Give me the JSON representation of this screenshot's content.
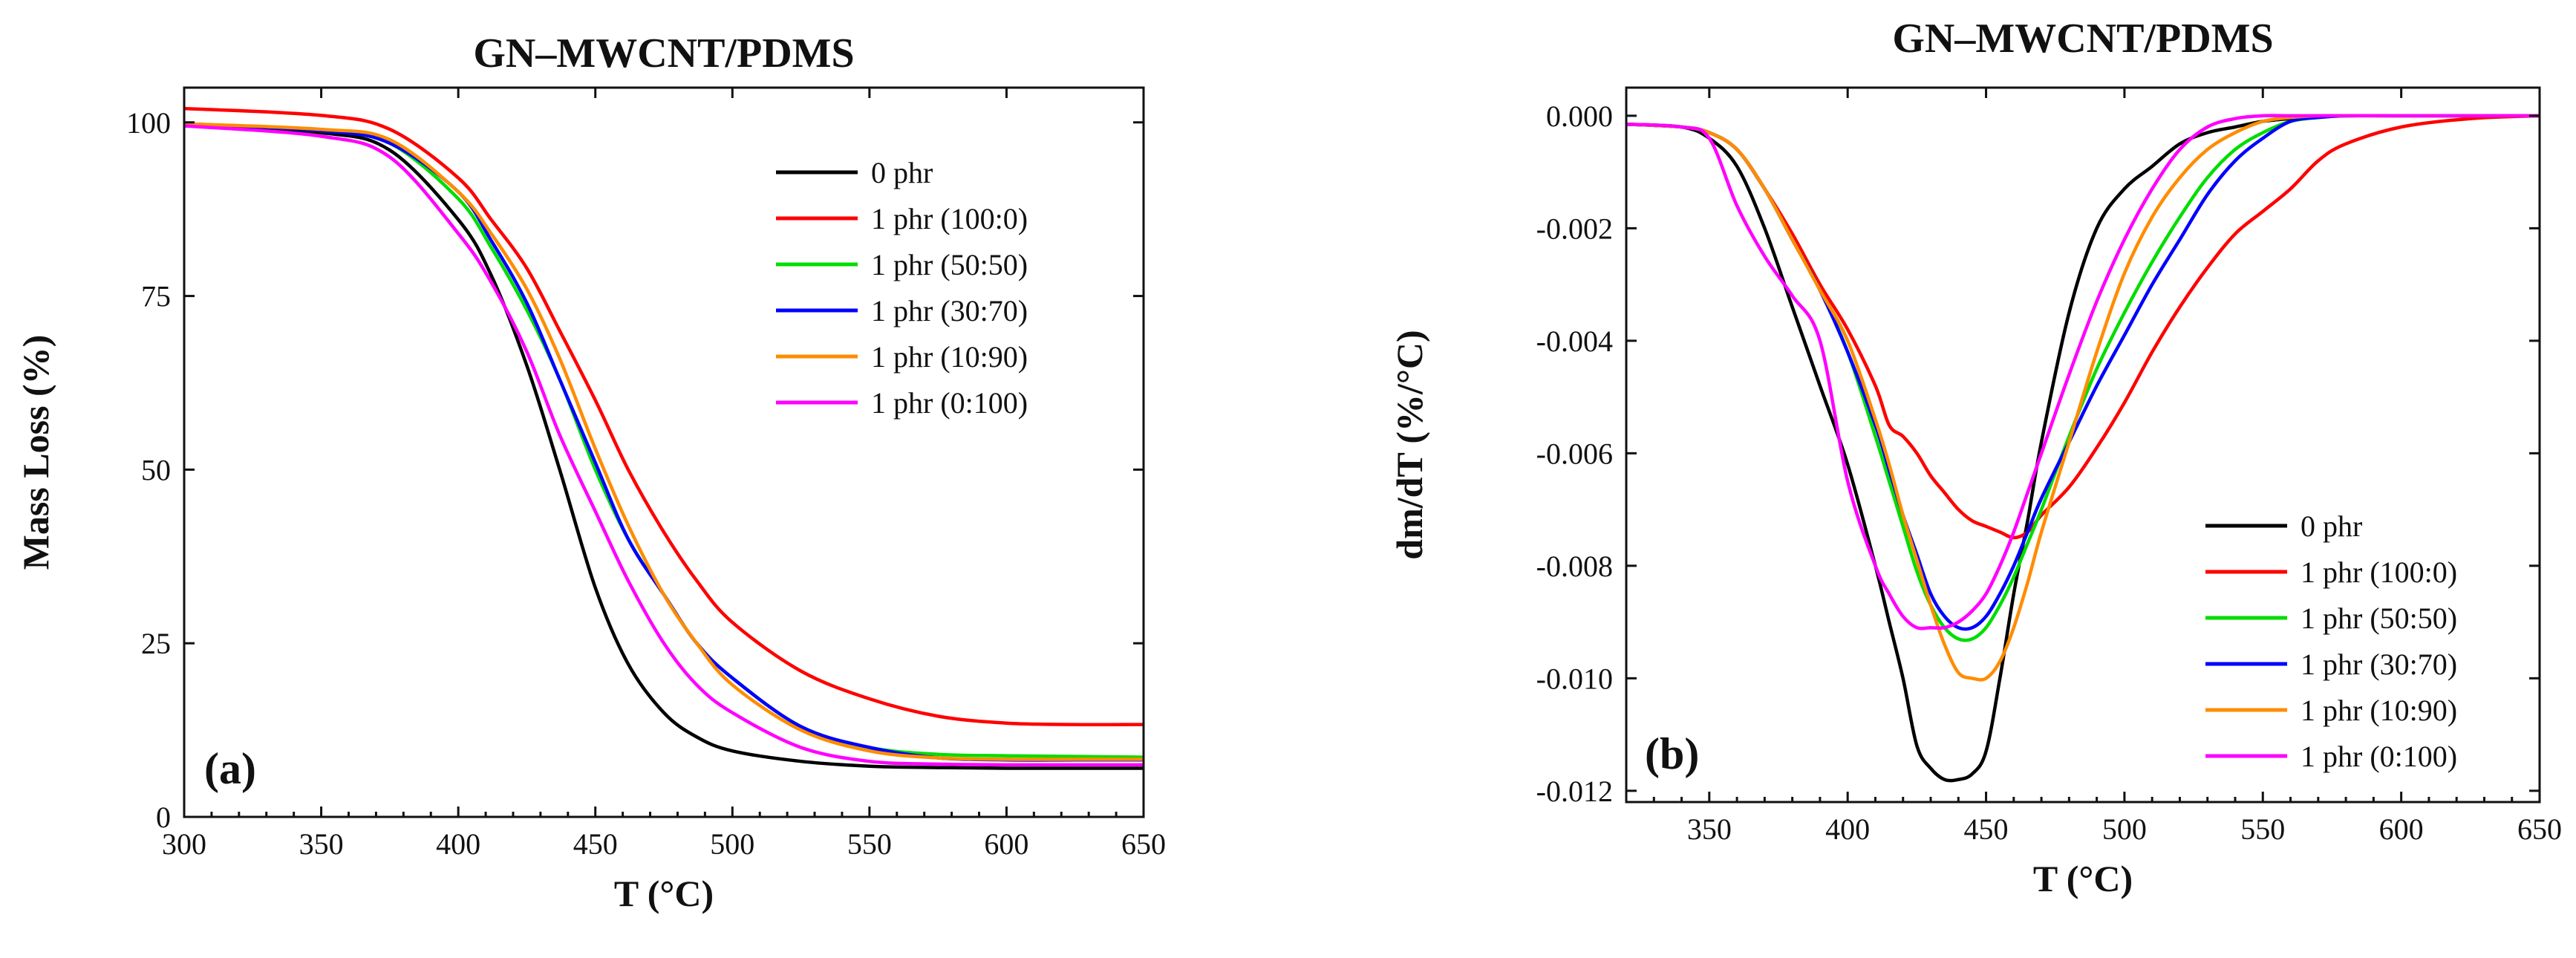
{
  "chart_data": [
    {
      "type": "line",
      "title": "GN–MWCNT/PDMS",
      "xlabel": "T (°C)",
      "ylabel": "Mass Loss (%)",
      "panel_label": "(a)",
      "xlim": [
        300,
        650
      ],
      "ylim": [
        0,
        105
      ],
      "xticks": [
        300,
        350,
        400,
        450,
        500,
        550,
        600,
        650
      ],
      "yticks": [
        0,
        25,
        50,
        75,
        100
      ],
      "xtick_labels": [
        "300",
        "350",
        "400",
        "450",
        "500",
        "550",
        "600",
        "650"
      ],
      "ytick_labels": [
        "0",
        "25",
        "50",
        "75",
        "100"
      ],
      "legend_position": "top-right",
      "grid": false,
      "x": [
        300,
        350,
        375,
        400,
        412,
        425,
        437,
        450,
        462,
        475,
        487,
        500,
        525,
        550,
        575,
        600,
        625,
        650
      ],
      "series": [
        {
          "name": "0 phr",
          "color": "#000000",
          "values": [
            99.5,
            98.5,
            96,
            86,
            78,
            65,
            50,
            33,
            22,
            15,
            11.5,
            9.5,
            8,
            7.3,
            7.1,
            7.0,
            7.0,
            7.0
          ]
        },
        {
          "name": "1 phr (100:0)",
          "color": "#ff0000",
          "values": [
            102,
            101,
            99,
            92,
            86,
            79,
            70,
            60,
            50,
            41,
            34,
            28,
            21,
            17,
            14.5,
            13.5,
            13.3,
            13.3
          ]
        },
        {
          "name": "1 phr (50:50)",
          "color": "#00dd00",
          "values": [
            99.8,
            98.8,
            97,
            89,
            82,
            73,
            63,
            50,
            40,
            32,
            25,
            20,
            13,
            10,
            9,
            8.8,
            8.7,
            8.6
          ]
        },
        {
          "name": "1 phr (30:70)",
          "color": "#0000ff",
          "values": [
            99.8,
            98.8,
            97,
            90,
            83,
            74,
            63,
            51,
            40,
            32,
            25,
            20,
            13,
            10,
            8.5,
            8.2,
            8.2,
            8.2
          ]
        },
        {
          "name": "1 phr (10:90)",
          "color": "#ff8c00",
          "values": [
            99.8,
            99,
            97.5,
            90,
            84,
            76,
            66,
            53,
            42,
            32,
            25,
            19,
            12.5,
            9.5,
            8.5,
            8.3,
            8.3,
            8.3
          ]
        },
        {
          "name": "1 phr (0:100)",
          "color": "#ff00ff",
          "values": [
            99.5,
            98,
            95,
            84,
            77,
            67,
            55,
            44,
            34,
            25,
            19,
            15,
            10,
            8,
            7.6,
            7.5,
            7.5,
            7.5
          ]
        }
      ]
    },
    {
      "type": "line",
      "title": "GN–MWCNT/PDMS",
      "xlabel": "T (°C)",
      "ylabel": "dm/dT (%/°C)",
      "panel_label": "(b)",
      "xlim": [
        320,
        650
      ],
      "ylim": [
        -0.0122,
        0.0005
      ],
      "xticks": [
        350,
        400,
        450,
        500,
        550,
        600,
        650
      ],
      "yticks": [
        0,
        -0.002,
        -0.004,
        -0.006,
        -0.008,
        -0.01,
        -0.012
      ],
      "xtick_labels": [
        "350",
        "400",
        "450",
        "500",
        "550",
        "600",
        "650"
      ],
      "ytick_labels": [
        "0.000",
        "-0.002",
        "-0.004",
        "-0.006",
        "-0.008",
        "-0.010",
        "-0.012"
      ],
      "legend_position": "bottom-right",
      "grid": false,
      "x": [
        320,
        340,
        350,
        360,
        370,
        380,
        390,
        400,
        410,
        415,
        420,
        425,
        430,
        435,
        440,
        445,
        450,
        455,
        460,
        465,
        470,
        480,
        490,
        500,
        510,
        520,
        530,
        540,
        550,
        560,
        570,
        580,
        600,
        625,
        650
      ],
      "series": [
        {
          "name": "0 phr",
          "color": "#000000",
          "values": [
            -0.00015,
            -0.0002,
            -0.0004,
            -0.0009,
            -0.002,
            -0.0034,
            -0.0048,
            -0.0062,
            -0.008,
            -0.009,
            -0.01,
            -0.0112,
            -0.0116,
            -0.0118,
            -0.0118,
            -0.0117,
            -0.0113,
            -0.01,
            -0.0085,
            -0.0072,
            -0.0058,
            -0.0035,
            -0.002,
            -0.0013,
            -0.0009,
            -0.0005,
            -0.0003,
            -0.0002,
            -0.0001,
            -5e-05,
            -2e-05,
            0,
            0,
            0,
            0
          ]
        },
        {
          "name": "1 phr (100:0)",
          "color": "#ff0000",
          "values": [
            -0.00015,
            -0.0002,
            -0.0003,
            -0.0006,
            -0.0013,
            -0.0021,
            -0.003,
            -0.0038,
            -0.0048,
            -0.0055,
            -0.0057,
            -0.006,
            -0.0064,
            -0.0067,
            -0.007,
            -0.0072,
            -0.0073,
            -0.0074,
            -0.0075,
            -0.0074,
            -0.0071,
            -0.0066,
            -0.0059,
            -0.0051,
            -0.0042,
            -0.0034,
            -0.0027,
            -0.0021,
            -0.0017,
            -0.0013,
            -0.0008,
            -0.0005,
            -0.0002,
            -5e-05,
            0
          ]
        },
        {
          "name": "1 phr (50:50)",
          "color": "#00dd00",
          "values": [
            -0.00015,
            -0.0002,
            -0.0003,
            -0.0006,
            -0.0013,
            -0.0022,
            -0.0031,
            -0.0042,
            -0.0057,
            -0.0065,
            -0.0073,
            -0.0081,
            -0.0087,
            -0.0091,
            -0.0093,
            -0.0093,
            -0.0091,
            -0.0087,
            -0.0082,
            -0.0076,
            -0.007,
            -0.0057,
            -0.0045,
            -0.0035,
            -0.0026,
            -0.0018,
            -0.0011,
            -0.0006,
            -0.0003,
            -0.0001,
            -3e-05,
            0,
            0,
            0,
            0
          ]
        },
        {
          "name": "1 phr (30:70)",
          "color": "#0000ff",
          "values": [
            -0.00015,
            -0.0002,
            -0.0003,
            -0.0006,
            -0.0013,
            -0.0022,
            -0.0031,
            -0.0042,
            -0.0055,
            -0.0063,
            -0.0071,
            -0.0078,
            -0.0085,
            -0.0089,
            -0.0091,
            -0.0091,
            -0.0089,
            -0.0085,
            -0.008,
            -0.0074,
            -0.0068,
            -0.0058,
            -0.0048,
            -0.0039,
            -0.003,
            -0.0022,
            -0.0014,
            -0.0008,
            -0.0004,
            -0.0001,
            -3e-05,
            0,
            0,
            0,
            0
          ]
        },
        {
          "name": "1 phr (10:90)",
          "color": "#ff8c00",
          "values": [
            -0.00015,
            -0.0002,
            -0.0003,
            -0.0006,
            -0.0013,
            -0.0022,
            -0.0031,
            -0.004,
            -0.0054,
            -0.0062,
            -0.0071,
            -0.0079,
            -0.0087,
            -0.0094,
            -0.0099,
            -0.01,
            -0.01,
            -0.0097,
            -0.0091,
            -0.0083,
            -0.0074,
            -0.0058,
            -0.0042,
            -0.0028,
            -0.0018,
            -0.0011,
            -0.0006,
            -0.0003,
            -0.0001,
            -3e-05,
            0,
            0,
            0,
            0,
            0
          ]
        },
        {
          "name": "1 phr (0:100)",
          "color": "#ff00ff",
          "values": [
            -0.00015,
            -0.0002,
            -0.0004,
            -0.0016,
            -0.0025,
            -0.0032,
            -0.004,
            -0.0065,
            -0.008,
            -0.0085,
            -0.0089,
            -0.0091,
            -0.0091,
            -0.0091,
            -0.009,
            -0.0088,
            -0.0085,
            -0.008,
            -0.0074,
            -0.0067,
            -0.006,
            -0.0046,
            -0.0033,
            -0.0022,
            -0.0013,
            -0.0006,
            -0.0002,
            -5e-05,
            0,
            0,
            0,
            0,
            0,
            0,
            0
          ]
        }
      ]
    }
  ]
}
